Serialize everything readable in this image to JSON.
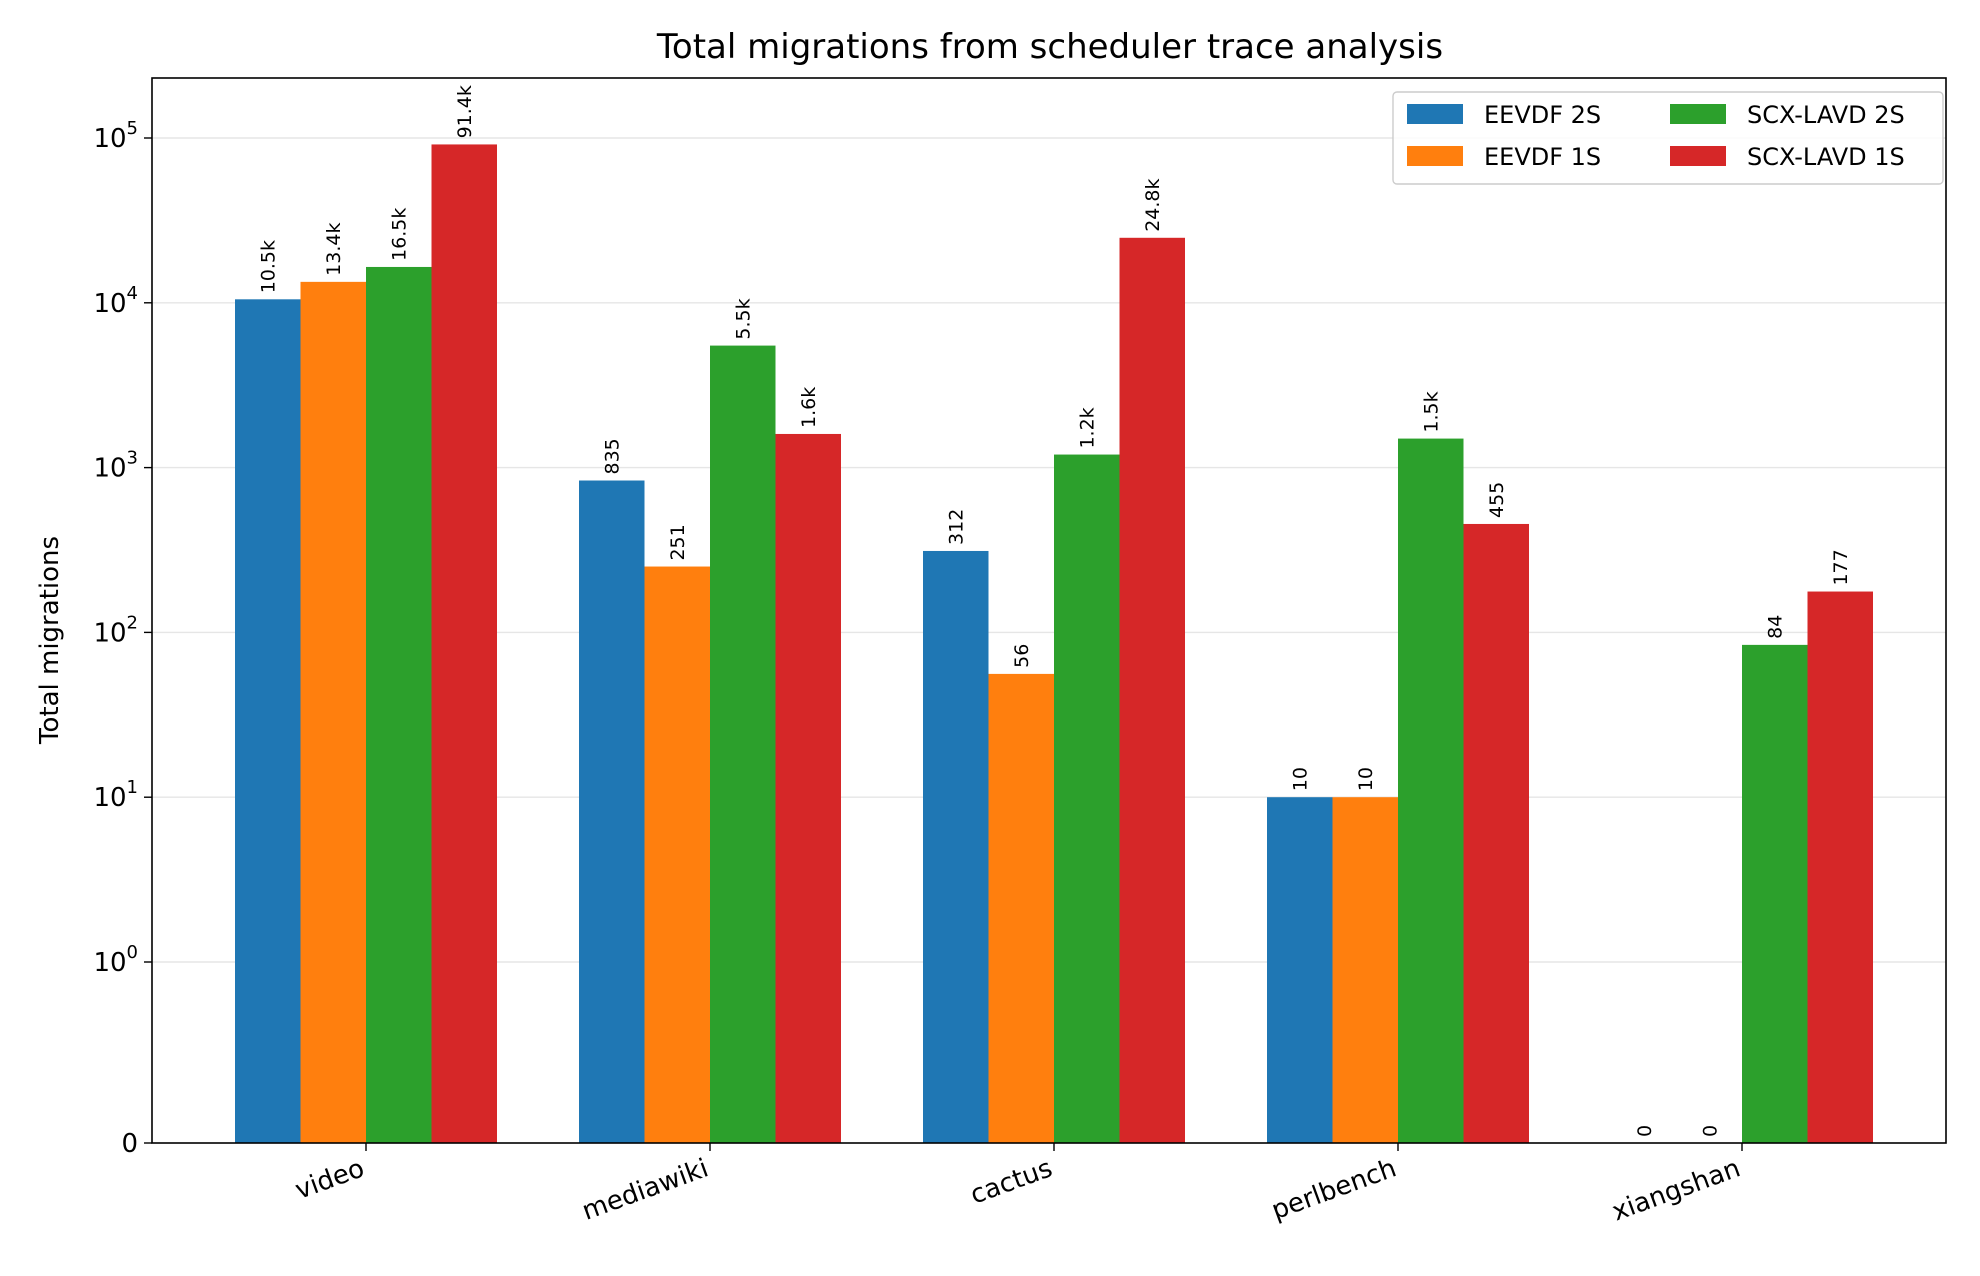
{
  "chart_data": {
    "type": "bar",
    "title": "Total migrations from scheduler trace analysis",
    "xlabel": "",
    "ylabel": "Total migrations",
    "yscale": "symlog",
    "ylim": [
      0,
      220000
    ],
    "grid": "y",
    "legend_placement": "top-right",
    "categories": [
      "video",
      "mediawiki",
      "cactus",
      "perlbench",
      "xiangshan"
    ],
    "series": [
      {
        "name": "EEVDF 2S",
        "color": "#1f77b4",
        "values": [
          10500,
          835,
          312,
          10,
          0
        ],
        "labels": [
          "10.5k",
          "835",
          "312",
          "10",
          "0"
        ]
      },
      {
        "name": "EEVDF 1S",
        "color": "#ff7f0e",
        "values": [
          13400,
          251,
          56,
          10,
          0
        ],
        "labels": [
          "13.4k",
          "251",
          "56",
          "10",
          "0"
        ]
      },
      {
        "name": "SCX-LAVD 2S",
        "color": "#2ca02c",
        "values": [
          16500,
          5500,
          1200,
          1500,
          84
        ],
        "labels": [
          "16.5k",
          "5.5k",
          "1.2k",
          "1.5k",
          "84"
        ]
      },
      {
        "name": "SCX-LAVD 1S",
        "color": "#d62728",
        "values": [
          91400,
          1600,
          24800,
          455,
          177
        ],
        "labels": [
          "91.4k",
          "1.6k",
          "24.8k",
          "455",
          "177"
        ]
      }
    ],
    "yticks": [
      {
        "value": 0,
        "base": "0",
        "exp": ""
      },
      {
        "value": 1,
        "base": "10",
        "exp": "0"
      },
      {
        "value": 10,
        "base": "10",
        "exp": "1"
      },
      {
        "value": 100,
        "base": "10",
        "exp": "2"
      },
      {
        "value": 1000,
        "base": "10",
        "exp": "3"
      },
      {
        "value": 10000,
        "base": "10",
        "exp": "4"
      },
      {
        "value": 100000,
        "base": "10",
        "exp": "5"
      }
    ]
  }
}
